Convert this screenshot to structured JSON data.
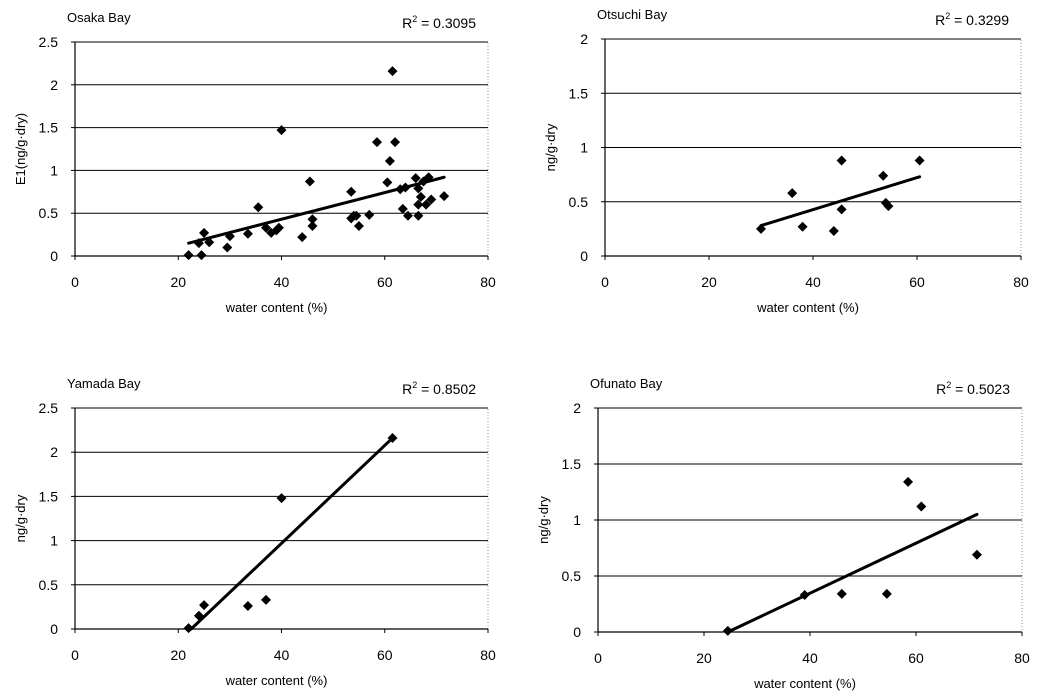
{
  "chart_data": [
    {
      "type": "scatter",
      "title": "Osaka Bay",
      "r2_label": "R",
      "r2_sup": "2",
      "r2_value": " = 0.3095",
      "xlabel": "water content (%)",
      "ylabel": "E1(ng/g·dry)",
      "xlim": [
        0,
        80
      ],
      "ylim": [
        0,
        2.5
      ],
      "xticks": [
        0,
        20,
        40,
        60,
        80
      ],
      "yticks": [
        0,
        0.5,
        1,
        1.5,
        2,
        2.5
      ],
      "grid": "horizontal",
      "points": [
        [
          22,
          0.01
        ],
        [
          24,
          0.15
        ],
        [
          24.5,
          0.01
        ],
        [
          25,
          0.27
        ],
        [
          26,
          0.16
        ],
        [
          29.5,
          0.1
        ],
        [
          30,
          0.23
        ],
        [
          33.5,
          0.26
        ],
        [
          35.5,
          0.57
        ],
        [
          37,
          0.33
        ],
        [
          38,
          0.27
        ],
        [
          39,
          0.3
        ],
        [
          39.5,
          0.33
        ],
        [
          40,
          1.47
        ],
        [
          44,
          0.22
        ],
        [
          45.5,
          0.87
        ],
        [
          46,
          0.35
        ],
        [
          46,
          0.43
        ],
        [
          53.5,
          0.44
        ],
        [
          53.5,
          0.75
        ],
        [
          54,
          0.47
        ],
        [
          54.5,
          0.47
        ],
        [
          55,
          0.35
        ],
        [
          57,
          0.48
        ],
        [
          58.5,
          1.33
        ],
        [
          60.5,
          0.86
        ],
        [
          61,
          1.11
        ],
        [
          61.5,
          2.16
        ],
        [
          62,
          1.33
        ],
        [
          63,
          0.78
        ],
        [
          63.5,
          0.55
        ],
        [
          64,
          0.8
        ],
        [
          64.5,
          0.47
        ],
        [
          66,
          0.91
        ],
        [
          66.5,
          0.6
        ],
        [
          66.5,
          0.79
        ],
        [
          66.5,
          0.47
        ],
        [
          67,
          0.69
        ],
        [
          67.5,
          0.87
        ],
        [
          68,
          0.6
        ],
        [
          68.5,
          0.92
        ],
        [
          69,
          0.66
        ],
        [
          71.5,
          0.7
        ]
      ],
      "trendline": [
        [
          22,
          0.15
        ],
        [
          71.5,
          0.92
        ]
      ]
    },
    {
      "type": "scatter",
      "title": "Otsuchi Bay",
      "r2_label": "R",
      "r2_sup": "2",
      "r2_value": " = 0.3299",
      "xlabel": "water content (%)",
      "ylabel": "ng/g·dry",
      "xlim": [
        0,
        80
      ],
      "ylim": [
        0,
        2
      ],
      "xticks": [
        0,
        20,
        40,
        60,
        80
      ],
      "yticks": [
        0,
        0.5,
        1,
        1.5,
        2
      ],
      "grid": "horizontal",
      "points": [
        [
          30,
          0.25
        ],
        [
          36,
          0.58
        ],
        [
          38,
          0.27
        ],
        [
          44,
          0.23
        ],
        [
          45.5,
          0.88
        ],
        [
          45.5,
          0.43
        ],
        [
          53.5,
          0.74
        ],
        [
          54,
          0.49
        ],
        [
          54.5,
          0.46
        ],
        [
          60.5,
          0.88
        ]
      ],
      "trendline": [
        [
          30,
          0.28
        ],
        [
          60.5,
          0.73
        ]
      ]
    },
    {
      "type": "scatter",
      "title": "Yamada Bay",
      "r2_label": "R",
      "r2_sup": "2",
      "r2_value": " = 0.8502",
      "xlabel": "water content (%)",
      "ylabel": "ng/g·dry",
      "xlim": [
        0,
        80
      ],
      "ylim": [
        0,
        2.5
      ],
      "xticks": [
        0,
        20,
        40,
        60,
        80
      ],
      "yticks": [
        0,
        0.5,
        1,
        1.5,
        2,
        2.5
      ],
      "grid": "horizontal",
      "points": [
        [
          22,
          0.01
        ],
        [
          24,
          0.15
        ],
        [
          25,
          0.27
        ],
        [
          33.5,
          0.26
        ],
        [
          37,
          0.33
        ],
        [
          40,
          1.48
        ],
        [
          61.5,
          2.16
        ]
      ],
      "trendline": [
        [
          22.5,
          0.0
        ],
        [
          61.5,
          2.16
        ]
      ]
    },
    {
      "type": "scatter",
      "title": "Ofunato Bay",
      "r2_label": "R",
      "r2_sup": "2",
      "r2_value": " = 0.5023",
      "xlabel": "water content (%)",
      "ylabel": "ng/g·dry",
      "xlim": [
        0,
        80
      ],
      "ylim": [
        0,
        2
      ],
      "xticks": [
        0,
        20,
        40,
        60,
        80
      ],
      "yticks": [
        0,
        0.5,
        1,
        1.5,
        2
      ],
      "grid": "horizontal",
      "points": [
        [
          24.5,
          0.01
        ],
        [
          39,
          0.33
        ],
        [
          46,
          0.34
        ],
        [
          54.5,
          0.34
        ],
        [
          58.5,
          1.34
        ],
        [
          61,
          1.12
        ],
        [
          71.5,
          0.69
        ]
      ],
      "trendline": [
        [
          24.5,
          0.0
        ],
        [
          71.5,
          1.05
        ]
      ]
    }
  ]
}
